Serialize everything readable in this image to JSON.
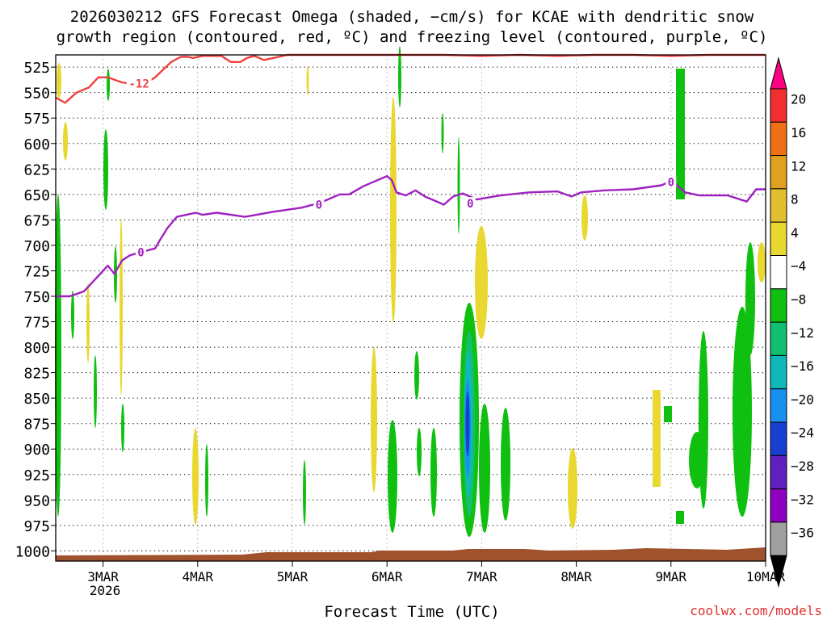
{
  "chart_data": {
    "type": "heatmap",
    "title_lines": [
      "2026030212 GFS Forecast Omega (shaded, −cm/s) for KCAE with dendritic snow",
      "growth region (contoured, red, ºC) and freezing level (contoured, purple, ºC)"
    ],
    "xlabel": "Forecast Time (UTC)",
    "ylabel": "",
    "watermark": "coolwx.com/models",
    "x_axis": {
      "range_days": [
        2.5,
        10.0
      ],
      "tick_days": [
        3,
        4,
        5,
        6,
        7,
        8,
        9,
        10
      ],
      "tick_labels": [
        "3MAR",
        "4MAR",
        "5MAR",
        "6MAR",
        "7MAR",
        "8MAR",
        "9MAR",
        "10MAR"
      ],
      "year_label": "2026"
    },
    "y_axis": {
      "unit": "hPa",
      "range": [
        513,
        1010
      ],
      "tick_values": [
        525,
        550,
        575,
        600,
        625,
        650,
        675,
        700,
        725,
        750,
        775,
        800,
        825,
        850,
        875,
        900,
        925,
        950,
        975,
        1000
      ],
      "tick_labels": [
        "525",
        "550",
        "575",
        "600",
        "625",
        "650",
        "675",
        "700",
        "725",
        "750",
        "775",
        "800",
        "825",
        "850",
        "875",
        "900",
        "925",
        "950",
        "975",
        "1000"
      ]
    },
    "colorbar": {
      "labels": [
        "20",
        "16",
        "12",
        "8",
        "4",
        "−4",
        "−8",
        "−12",
        "−16",
        "−20",
        "−24",
        "−28",
        "−32",
        "−36"
      ],
      "colors": [
        "#ff0080",
        "#f03030",
        "#f07018",
        "#e0a020",
        "#e0c030",
        "#e8d830",
        "#ffffff",
        "#10c010",
        "#10c070",
        "#10b8b8",
        "#1890f0",
        "#1840d0",
        "#6020c0",
        "#9000c0",
        "#a0a0a0",
        "#000000"
      ]
    },
    "series": [
      {
        "name": "-12 ºC",
        "color": "#f04040",
        "x": [
          2.5,
          2.6,
          2.72,
          2.85,
          2.95,
          3.05,
          3.2,
          3.35,
          3.5,
          3.55,
          3.63,
          3.72,
          3.82,
          3.9,
          3.95,
          4.05,
          4.25,
          4.35,
          4.45,
          4.52,
          4.6,
          4.7,
          4.8,
          4.95,
          5.2,
          5.5,
          5.8,
          6.0,
          6.3,
          6.6,
          7.0,
          7.4,
          7.8,
          8.2,
          8.6,
          9.0,
          9.4,
          9.8,
          10.0
        ],
        "y": [
          555,
          560,
          550,
          545,
          535,
          535,
          540,
          542,
          538,
          535,
          528,
          520,
          515,
          515,
          516,
          514,
          514,
          520,
          520,
          516,
          514,
          518,
          516,
          513,
          513,
          513,
          513,
          513,
          513,
          513,
          514,
          513,
          514,
          513,
          513,
          514,
          513,
          513,
          513
        ],
        "labels": [
          {
            "x": 3.38,
            "y": 541,
            "text": "-12"
          }
        ]
      },
      {
        "name": "0 ºC",
        "color": "#a020c0",
        "x": [
          2.5,
          2.65,
          2.8,
          2.9,
          3.0,
          3.05,
          3.12,
          3.2,
          3.28,
          3.35,
          3.55,
          3.6,
          3.68,
          3.78,
          3.88,
          3.98,
          4.05,
          4.2,
          4.5,
          4.8,
          5.1,
          5.3,
          5.5,
          5.6,
          5.75,
          5.85,
          6.0,
          6.05,
          6.1,
          6.2,
          6.3,
          6.4,
          6.5,
          6.6,
          6.7,
          6.8,
          6.95,
          7.2,
          7.5,
          7.8,
          7.95,
          8.05,
          8.3,
          8.6,
          8.9,
          9.0,
          9.05,
          9.15,
          9.3,
          9.6,
          9.8,
          9.9,
          10.0
        ],
        "y": [
          750,
          750,
          745,
          735,
          725,
          720,
          728,
          715,
          710,
          708,
          703,
          695,
          683,
          672,
          670,
          668,
          670,
          668,
          672,
          667,
          663,
          658,
          650,
          650,
          642,
          638,
          632,
          636,
          648,
          651,
          646,
          652,
          656,
          660,
          652,
          649,
          655,
          651,
          648,
          647,
          652,
          648,
          646,
          645,
          641,
          637,
          640,
          648,
          651,
          651,
          657,
          645,
          645
        ],
        "labels": [
          {
            "x": 3.4,
            "y": 707,
            "text": "0"
          },
          {
            "x": 5.28,
            "y": 660,
            "text": "0"
          },
          {
            "x": 6.88,
            "y": 659,
            "text": "0"
          },
          {
            "x": 9.0,
            "y": 638,
            "text": "0"
          }
        ]
      }
    ]
  }
}
